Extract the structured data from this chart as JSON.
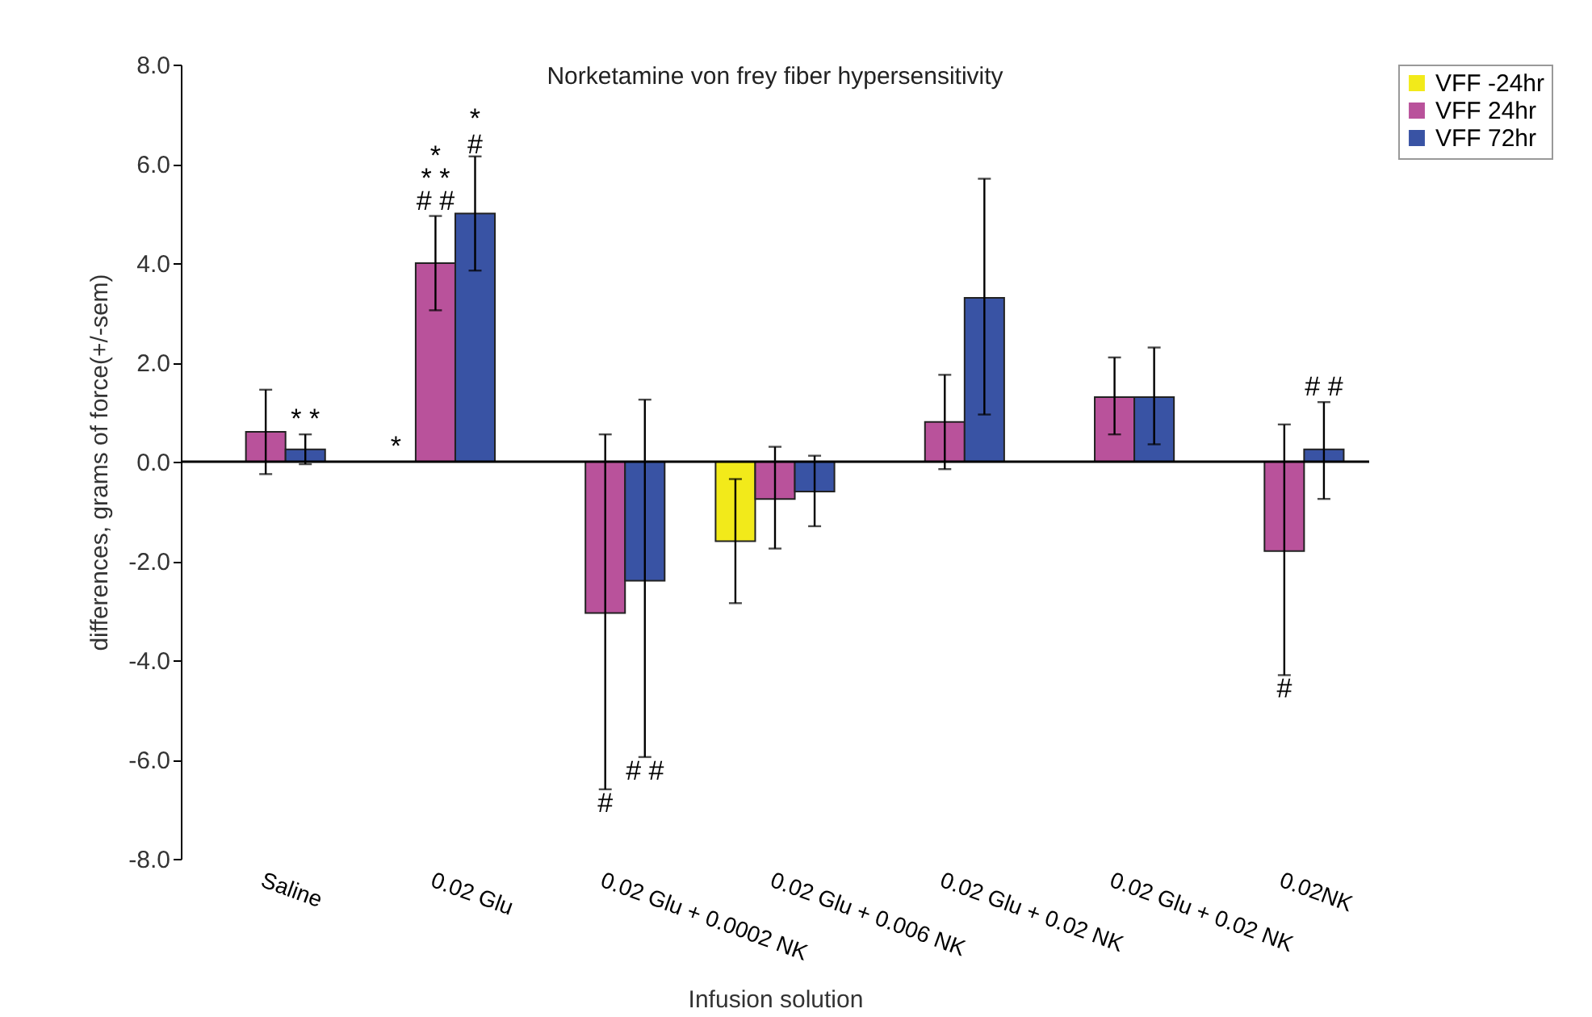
{
  "chart_data": {
    "type": "bar",
    "title": "Norketamine von frey fiber hypersensitivity",
    "xlabel": "Infusion solution",
    "ylabel": "differences, grams of force(+/-sem)",
    "categories": [
      "Saline",
      "0.02 Glu",
      "0.02 Glu + 0.0002 NK",
      "0.02 Glu + 0.006 NK",
      "0.02 Glu + 0.02 NK",
      "0.02 Glu + 0.02 NK",
      "0.02NK"
    ],
    "series": [
      {
        "name": "VFF -24hr",
        "color": "#f2ea1a",
        "values": [
          0,
          0,
          0,
          -1.6,
          0,
          0,
          0
        ],
        "errors": [
          null,
          null,
          null,
          [
            -2.85,
            -0.35
          ],
          null,
          null,
          null
        ]
      },
      {
        "name": "VFF 24hr",
        "color": "#b9529b",
        "values": [
          0.6,
          4.0,
          -3.05,
          -0.75,
          0.8,
          1.3,
          -1.8
        ],
        "errors": [
          [
            -0.25,
            1.45
          ],
          [
            3.05,
            4.95
          ],
          [
            -6.6,
            0.55
          ],
          [
            -1.75,
            0.3
          ],
          [
            -0.15,
            1.75
          ],
          [
            0.55,
            2.1
          ],
          [
            -4.3,
            0.75
          ]
        ]
      },
      {
        "name": "VFF 72hr",
        "color": "#3953a4",
        "values": [
          0.25,
          5.0,
          -2.4,
          -0.6,
          3.3,
          1.3,
          0.25
        ],
        "errors": [
          [
            -0.05,
            0.55
          ],
          [
            3.85,
            6.15
          ],
          [
            -5.95,
            1.25
          ],
          [
            -1.3,
            0.12
          ],
          [
            0.95,
            5.7
          ],
          [
            0.35,
            2.3
          ],
          [
            -0.75,
            1.2
          ]
        ]
      }
    ],
    "ylim": [
      -8,
      8
    ],
    "yticks": [
      {
        "value": -8,
        "label": "-8.0"
      },
      {
        "value": -6,
        "label": "-6.0"
      },
      {
        "value": -4,
        "label": "-4.0"
      },
      {
        "value": -2,
        "label": "-2.0"
      },
      {
        "value": 0,
        "label": "0.0"
      },
      {
        "value": 2,
        "label": "2.0"
      },
      {
        "value": 4,
        "label": "4.0"
      },
      {
        "value": 6,
        "label": "6.0"
      },
      {
        "value": 8,
        "label": "8.0"
      }
    ],
    "ref_lines": [
      {
        "axis": "y",
        "value": 0,
        "label": null,
        "color": "#000000"
      }
    ],
    "annotations": [
      {
        "text": "* *",
        "x": "Saline",
        "y": 0.55
      },
      {
        "text": "*",
        "x": "0.02 Glu",
        "y": 0
      },
      {
        "text": "# #",
        "x": "0.02 Glu",
        "y": 4.95
      },
      {
        "text": "* *",
        "x": "0.02 Glu",
        "y": 4.95
      },
      {
        "text": "*",
        "x": "0.02 Glu",
        "y": 4.95
      },
      {
        "text": "*\n#",
        "x": "0.02 Glu",
        "y": 5.0
      },
      {
        "text": "#",
        "x": "0.02 Glu + 0.0002 NK",
        "y": -6.6
      },
      {
        "text": "# #",
        "x": "0.02 Glu + 0.0002 NK",
        "y": -5.95
      },
      {
        "text": "#",
        "x": "0.02NK",
        "y": -4.3
      },
      {
        "text": "# #",
        "x": "0.02NK",
        "y": 0.25
      }
    ],
    "grid": false,
    "legend": "right"
  }
}
